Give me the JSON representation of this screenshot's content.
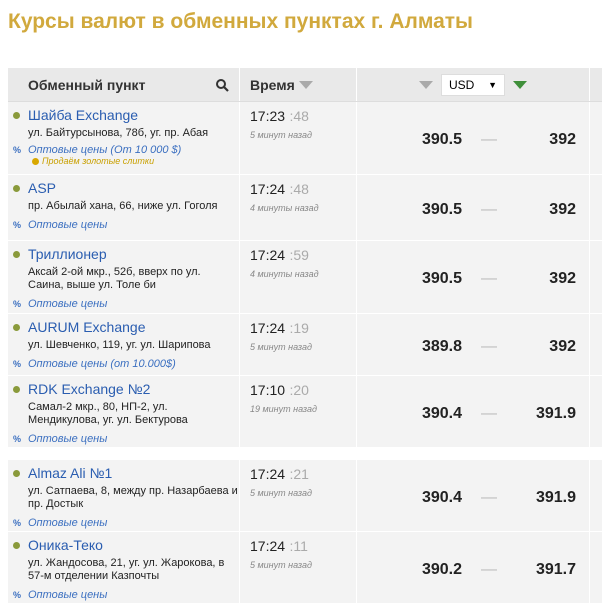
{
  "title": "Курсы валют в обменных пунктах г. Алматы",
  "header": {
    "point": "Обменный пункт",
    "time": "Время",
    "currency": "USD"
  },
  "rows": [
    {
      "name": "Шайба Exchange",
      "address": "ул. Байтурсынова, 78б, уг. пр. Абая",
      "wholesale": "Оптовые цены (От 10 000 $)",
      "note": "Продаём золотые слитки",
      "time": "17:23",
      "sec": ":48",
      "ago": "5 минут назад",
      "buy": "390.5",
      "sell": "392"
    },
    {
      "name": "ASP",
      "address": "пр. Абылай хана, 66, ниже ул. Гоголя",
      "wholesale": "Оптовые цены",
      "time": "17:24",
      "sec": ":48",
      "ago": "4 минуты назад",
      "buy": "390.5",
      "sell": "392"
    },
    {
      "name": "Триллионер",
      "address": "Аксай 2-ой мкр., 52б, вверх по ул. Саина, выше ул. Толе би",
      "wholesale": "Оптовые цены",
      "time": "17:24",
      "sec": ":59",
      "ago": "4 минуты назад",
      "buy": "390.5",
      "sell": "392"
    },
    {
      "name": "AURUM Exchange",
      "address": "ул. Шевченко, 119, уг. ул. Шарипова",
      "wholesale": "Оптовые цены (от 10.000$)",
      "time": "17:24",
      "sec": ":19",
      "ago": "5 минут назад",
      "buy": "389.8",
      "sell": "392"
    },
    {
      "name": "RDK Exchange №2",
      "address": "Самал-2 мкр., 80, НП-2, ул. Мендикулова, уг. ул. Бектурова",
      "wholesale": "Оптовые цены",
      "time": "17:10",
      "sec": ":20",
      "ago": "19 минут назад",
      "buy": "390.4",
      "sell": "391.9"
    },
    {
      "name": "Almaz Ali №1",
      "address": "ул. Сатпаева, 8, между пр. Назарбаева и пр. Достык",
      "wholesale": "Оптовые цены",
      "time": "17:24",
      "sec": ":21",
      "ago": "5 минут назад",
      "buy": "390.4",
      "sell": "391.9"
    },
    {
      "name": "Оника-Теко",
      "address": "ул. Жандосова, 21, уг. ул. Жарокова, в 57-м отделении Казпочты",
      "wholesale": "Оптовые цены",
      "time": "17:24",
      "sec": ":11",
      "ago": "5 минут назад",
      "buy": "390.2",
      "sell": "391.7"
    }
  ]
}
